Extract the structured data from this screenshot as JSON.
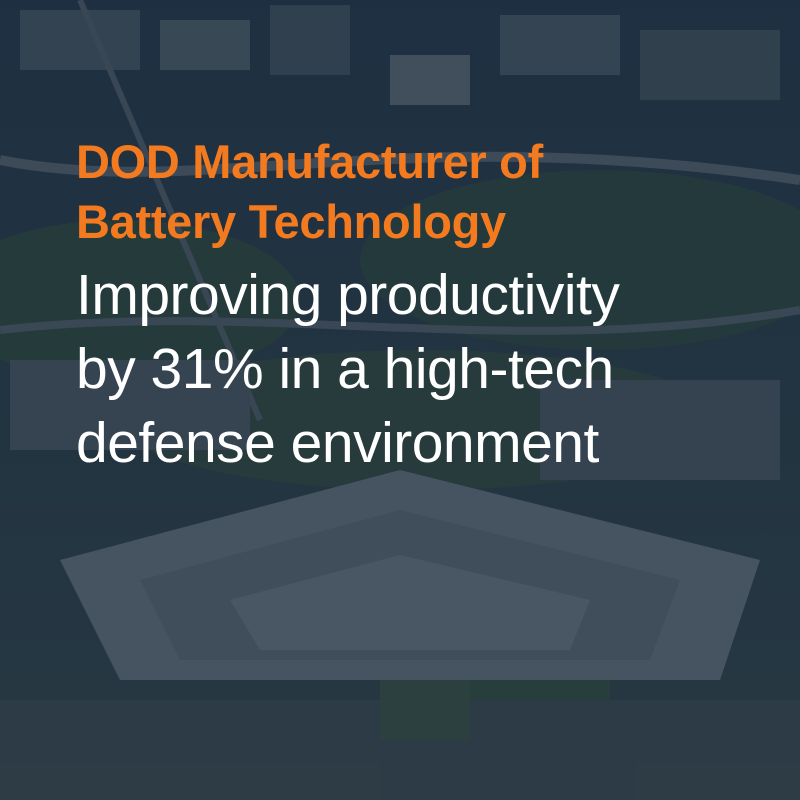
{
  "colors": {
    "headline": "#f47a20",
    "subhead": "#ffffff",
    "overlay": "#14263a"
  },
  "background": {
    "icon": "pentagon-aerial-photo"
  },
  "headline": {
    "lines": [
      "DOD Manufacturer of",
      "Battery Technology"
    ]
  },
  "subhead": {
    "lines": [
      "Improving productivity",
      "by 31% in a high-tech",
      "defense environment"
    ]
  }
}
